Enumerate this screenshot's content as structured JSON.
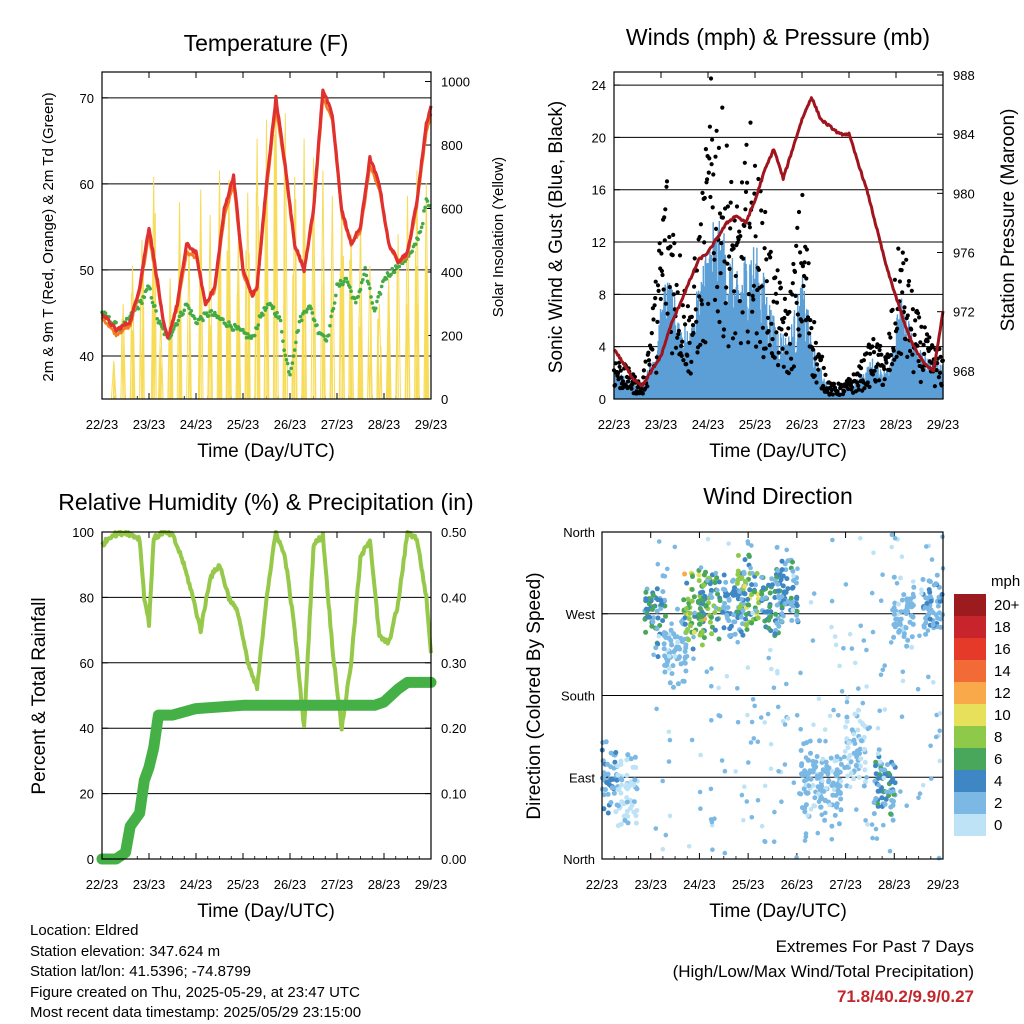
{
  "colors": {
    "temp2m": "#e03030",
    "temp9m": "#f47c20",
    "dewpoint": "#44aa44",
    "solar": "#f7dc5a",
    "wind": "#5b9fd6",
    "gust": "#000000",
    "pressure": "#a0141e",
    "rh": "#96c84a",
    "precip": "#44b046",
    "extremes": "#c1272d"
  },
  "x_ticks": [
    "22/23",
    "23/23",
    "24/23",
    "25/23",
    "26/23",
    "27/23",
    "28/23",
    "29/23"
  ],
  "chart_data": [
    {
      "id": "temperature",
      "type": "line",
      "title": "Temperature (F)",
      "xlabel": "Time (Day/UTC)",
      "ylabel": "2m & 9m T (Red, Orange) & 2m Td (Green)",
      "y2label": "Solar Insolation (Yellow)",
      "ylim": [
        35,
        73
      ],
      "y2lim": [
        0,
        1030
      ],
      "yticks": [
        40,
        50,
        60,
        70
      ],
      "y2ticks": [
        0,
        200,
        400,
        600,
        800,
        1000
      ],
      "grid": true,
      "series": [
        {
          "name": "2m T",
          "color": "#e03030",
          "x": [
            0,
            0.3,
            0.6,
            0.8,
            1.0,
            1.2,
            1.3,
            1.4,
            1.6,
            1.8,
            2.0,
            2.2,
            2.4,
            2.6,
            2.8,
            3.0,
            3.2,
            3.3,
            3.5,
            3.7,
            3.9,
            4.1,
            4.3,
            4.5,
            4.7,
            4.9,
            5.1,
            5.3,
            5.5,
            5.7,
            5.9,
            6.1,
            6.3,
            6.5,
            6.7,
            6.9,
            7.0
          ],
          "y": [
            45,
            43,
            44,
            48,
            55,
            48,
            44,
            42,
            46,
            53,
            52,
            46,
            48,
            57,
            61,
            50,
            47,
            48,
            60,
            70,
            62,
            53,
            50,
            57,
            71,
            68,
            57,
            53,
            55,
            63,
            60,
            53,
            51,
            52,
            58,
            67,
            69
          ]
        },
        {
          "name": "9m T",
          "color": "#f47c20",
          "x": [
            0,
            0.3,
            0.6,
            0.8,
            1.0,
            1.2,
            1.3,
            1.4,
            1.6,
            1.8,
            2.0,
            2.2,
            2.4,
            2.6,
            2.8,
            3.0,
            3.2,
            3.3,
            3.5,
            3.7,
            3.9,
            4.1,
            4.3,
            4.5,
            4.7,
            4.9,
            5.1,
            5.3,
            5.5,
            5.7,
            5.9,
            6.1,
            6.3,
            6.5,
            6.7,
            6.9,
            7.0
          ],
          "y": [
            44.5,
            42.5,
            43.5,
            47.5,
            54,
            47.5,
            44,
            42,
            45.5,
            52,
            51.5,
            46,
            47.5,
            56,
            60,
            49.5,
            47,
            48,
            59,
            69,
            61.5,
            52.5,
            50,
            56.5,
            70,
            67.5,
            56.5,
            53,
            54.5,
            62,
            59.5,
            53,
            51,
            51.5,
            57.5,
            66,
            68
          ]
        },
        {
          "name": "2m Td",
          "color": "#44aa44",
          "x": [
            0,
            0.4,
            0.8,
            1.0,
            1.2,
            1.4,
            1.6,
            1.8,
            2.0,
            2.3,
            2.6,
            2.9,
            3.2,
            3.4,
            3.6,
            3.8,
            3.9,
            4.0,
            4.2,
            4.4,
            4.6,
            4.8,
            5.0,
            5.2,
            5.4,
            5.6,
            5.8,
            6.0,
            6.2,
            6.4,
            6.6,
            6.8,
            6.9,
            7.0
          ],
          "y": [
            45,
            43,
            46,
            48,
            44,
            42,
            44,
            46,
            44,
            45,
            44,
            43,
            42,
            45,
            46,
            44,
            40,
            38,
            44,
            46,
            43,
            42,
            48,
            49,
            46,
            50,
            45,
            49,
            50,
            51,
            52,
            55,
            58,
            57
          ]
        },
        {
          "name": "Solar Insolation",
          "color": "#f7dc5a",
          "axis": "y2",
          "peaks_x": [
            0.25,
            0.45,
            0.65,
            0.85,
            1.1,
            1.25,
            1.45,
            1.65,
            1.85,
            2.1,
            2.3,
            2.5,
            2.7,
            2.9,
            3.1,
            3.3,
            3.5,
            3.7,
            3.9,
            4.1,
            4.3,
            4.5,
            4.7,
            4.9,
            5.1,
            5.3,
            5.5,
            5.7,
            5.9,
            6.1,
            6.3,
            6.5,
            6.7,
            6.9
          ],
          "peaks_y": [
            120,
            300,
            420,
            500,
            700,
            250,
            380,
            620,
            480,
            660,
            580,
            720,
            690,
            500,
            650,
            820,
            880,
            960,
            900,
            700,
            820,
            760,
            720,
            640,
            600,
            520,
            560,
            420,
            300,
            380,
            520,
            640,
            720,
            680
          ]
        }
      ]
    },
    {
      "id": "winds",
      "type": "scatter",
      "title": "Winds (mph) & Pressure (mb)",
      "xlabel": "Time (Day/UTC)",
      "ylabel": "Sonic Wind & Gust (Blue, Black)",
      "y2label": "Station Pressure (Maroon)",
      "ylim": [
        0,
        25
      ],
      "y2lim": [
        966.1,
        988.2
      ],
      "yticks": [
        0,
        4,
        8,
        12,
        16,
        20,
        24
      ],
      "y2ticks": [
        968,
        972,
        976,
        980,
        984,
        988
      ],
      "grid": true,
      "series": [
        {
          "name": "Gust",
          "color": "#000000",
          "x": [
            0,
            0.3,
            0.6,
            0.9,
            1.1,
            1.3,
            1.6,
            1.9,
            2.1,
            2.4,
            2.6,
            2.9,
            3.1,
            3.4,
            3.7,
            4.0,
            4.3,
            4.6,
            4.9,
            5.2,
            5.5,
            5.8,
            6.1,
            6.4,
            6.7,
            7.0
          ],
          "y": [
            3,
            2,
            1,
            8,
            16,
            12,
            6,
            14,
            22,
            17,
            12,
            18,
            14,
            9,
            6,
            14,
            4,
            1,
            1,
            2,
            4,
            3,
            11,
            6,
            4,
            3
          ]
        },
        {
          "name": "Sonic Wind",
          "color": "#5b9fd6",
          "x": [
            0,
            0.3,
            0.6,
            0.9,
            1.1,
            1.3,
            1.6,
            1.9,
            2.1,
            2.4,
            2.6,
            2.9,
            3.1,
            3.4,
            3.7,
            4.0,
            4.3,
            4.6,
            4.9,
            5.2,
            5.5,
            5.8,
            6.1,
            6.4,
            6.7,
            7.0
          ],
          "y": [
            1.5,
            1,
            0.5,
            3,
            6,
            5,
            3,
            7,
            9,
            8,
            6,
            8,
            7,
            4,
            3,
            6,
            2,
            0.5,
            0.5,
            1,
            2,
            1.5,
            5,
            3,
            2,
            2
          ]
        },
        {
          "name": "Station Pressure",
          "color": "#a0141e",
          "axis": "y2",
          "x": [
            0,
            0.2,
            0.4,
            0.6,
            0.8,
            1.0,
            1.2,
            1.4,
            1.6,
            1.8,
            2.0,
            2.2,
            2.4,
            2.6,
            2.8,
            3.0,
            3.2,
            3.4,
            3.6,
            3.8,
            4.0,
            4.2,
            4.4,
            4.6,
            4.8,
            5.0,
            5.2,
            5.4,
            5.6,
            5.8,
            6.0,
            6.2,
            6.4,
            6.6,
            6.8,
            7.0
          ],
          "y": [
            969.5,
            968.5,
            967.5,
            967,
            968,
            969,
            971,
            972.5,
            974,
            975.5,
            976,
            977,
            978,
            978.5,
            978,
            979.5,
            981.5,
            983,
            981,
            983,
            985,
            986.5,
            985,
            984.5,
            984,
            984,
            982,
            980,
            977.5,
            975,
            973,
            971,
            969.5,
            968.5,
            968,
            972
          ]
        }
      ]
    },
    {
      "id": "humidity",
      "type": "line",
      "title": "Relative Humidity (%) & Precipitation (in)",
      "xlabel": "Time (Day/UTC)",
      "ylabel": "Percent & Total Rainfall",
      "ylim": [
        0,
        100
      ],
      "y2lim": [
        0,
        0.5
      ],
      "yticks": [
        0,
        20,
        40,
        60,
        80,
        100
      ],
      "y2ticks": [
        "0.00",
        "0.10",
        "0.20",
        "0.30",
        "0.40",
        "0.50"
      ],
      "grid": true,
      "series": [
        {
          "name": "Relative Humidity",
          "color": "#96c84a",
          "x": [
            0,
            0.2,
            0.5,
            0.8,
            0.9,
            1.0,
            1.1,
            1.3,
            1.5,
            1.7,
            1.9,
            2.1,
            2.3,
            2.5,
            2.7,
            2.9,
            3.1,
            3.3,
            3.5,
            3.7,
            3.9,
            4.1,
            4.3,
            4.5,
            4.7,
            4.9,
            5.1,
            5.3,
            5.5,
            5.7,
            5.9,
            6.1,
            6.3,
            6.5,
            6.7,
            6.9,
            7.0
          ],
          "y": [
            96,
            99,
            100,
            98,
            80,
            72,
            98,
            100,
            99,
            92,
            82,
            70,
            86,
            90,
            80,
            75,
            60,
            52,
            80,
            100,
            92,
            70,
            40,
            96,
            99,
            65,
            40,
            60,
            92,
            98,
            68,
            66,
            78,
            100,
            98,
            80,
            63
          ]
        },
        {
          "name": "Total Precipitation",
          "color": "#44b046",
          "axis": "y2",
          "x": [
            0,
            0.3,
            0.5,
            0.6,
            0.8,
            0.9,
            1.0,
            1.1,
            1.2,
            1.3,
            1.5,
            2.0,
            3.0,
            4.0,
            5.0,
            5.8,
            6.0,
            6.3,
            6.5,
            7.0
          ],
          "y": [
            0,
            0,
            0.01,
            0.05,
            0.07,
            0.12,
            0.14,
            0.17,
            0.22,
            0.22,
            0.22,
            0.23,
            0.235,
            0.235,
            0.235,
            0.235,
            0.24,
            0.26,
            0.27,
            0.27
          ]
        }
      ]
    },
    {
      "id": "direction",
      "type": "scatter",
      "title": "Wind Direction",
      "xlabel": "Time (Day/UTC)",
      "ylabel": "Direction (Colored By Speed)",
      "ylim": [
        0,
        360
      ],
      "yticks": [
        "North",
        "East",
        "South",
        "West",
        "North"
      ],
      "grid": true,
      "legend": {
        "title": "mph",
        "position": "right",
        "labels": [
          "20+",
          "18",
          "16",
          "14",
          "12",
          "10",
          "8",
          "6",
          "4",
          "2",
          "0"
        ],
        "colors": [
          "#9b1b1e",
          "#c8242b",
          "#e53a2a",
          "#f26a35",
          "#f9a94a",
          "#e6e05a",
          "#8ec94a",
          "#49a75c",
          "#3f86c4",
          "#7bb8e4",
          "#bfe3f6"
        ]
      },
      "clusters": [
        {
          "x": 0.1,
          "dir": 90,
          "speed": 3
        },
        {
          "x": 0.5,
          "dir": 70,
          "speed": 1
        },
        {
          "x": 1.1,
          "dir": 270,
          "speed": 5
        },
        {
          "x": 1.5,
          "dir": 230,
          "speed": 2
        },
        {
          "x": 1.9,
          "dir": 275,
          "speed": 8
        },
        {
          "x": 2.2,
          "dir": 285,
          "speed": 6
        },
        {
          "x": 2.7,
          "dir": 280,
          "speed": 3
        },
        {
          "x": 3.0,
          "dir": 290,
          "speed": 7
        },
        {
          "x": 3.5,
          "dir": 280,
          "speed": 5
        },
        {
          "x": 3.8,
          "dir": 295,
          "speed": 4
        },
        {
          "x": 4.3,
          "dir": 90,
          "speed": 2
        },
        {
          "x": 4.7,
          "dir": 80,
          "speed": 2
        },
        {
          "x": 5.2,
          "dir": 120,
          "speed": 1
        },
        {
          "x": 5.8,
          "dir": 80,
          "speed": 4
        },
        {
          "x": 6.2,
          "dir": 270,
          "speed": 2
        },
        {
          "x": 6.8,
          "dir": 275,
          "speed": 3
        }
      ]
    }
  ],
  "info": {
    "location": "Location: Eldred",
    "elevation": "Station elevation: 347.624 m",
    "latlon": "Station lat/lon: 41.5396; -74.8799",
    "created": "Figure created on Thu, 2025-05-29, at 23:47 UTC",
    "recent": "Most recent data timestamp: 2025/05/29 23:15:00"
  },
  "extremes": {
    "title": "Extremes For Past 7 Days",
    "subtitle": "(High/Low/Max Wind/Total Precipitation)",
    "values": "71.8/40.2/9.9/0.27"
  }
}
